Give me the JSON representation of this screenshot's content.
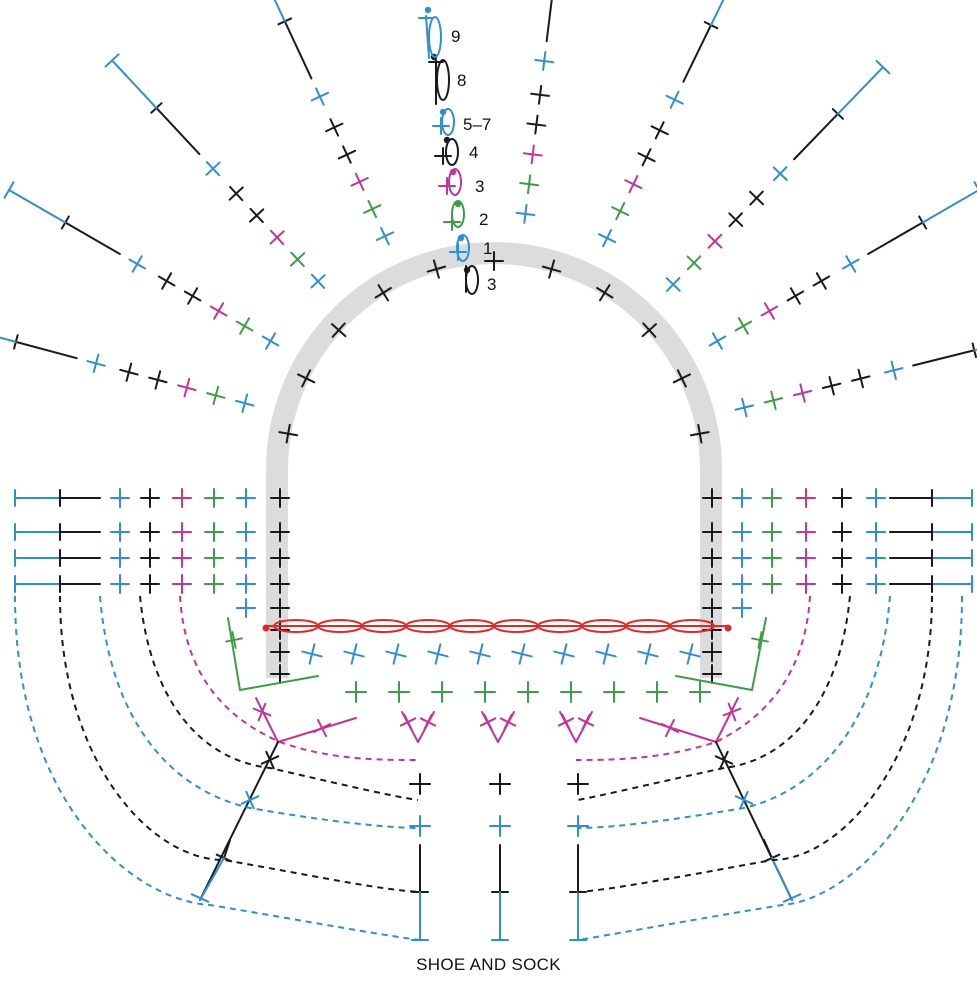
{
  "diagram": {
    "caption": "SHOE AND SOCK",
    "row_labels": [
      "9",
      "8",
      "5–7",
      "4",
      "3",
      "2",
      "1",
      "3"
    ],
    "colors": {
      "black": "#1a1a1a",
      "blue": "#2f8fcf",
      "magenta": "#c2349b",
      "green": "#3f9c48",
      "red": "#e02a2a",
      "band": "#dcdcde"
    }
  }
}
